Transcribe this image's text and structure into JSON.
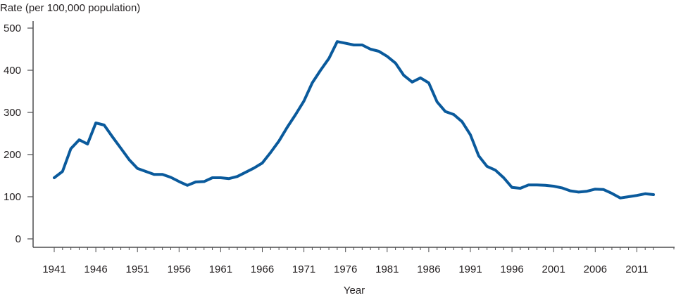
{
  "chart_data": {
    "type": "line",
    "title": "",
    "xlabel": "Year",
    "ylabel": "Rate (per 100,000 population)",
    "ylim": [
      0,
      500
    ],
    "yticks": [
      0,
      100,
      200,
      300,
      400,
      500
    ],
    "xtick_labels": [
      "1941",
      "1946",
      "1951",
      "1956",
      "1961",
      "1966",
      "1971",
      "1976",
      "1981",
      "1986",
      "1991",
      "1996",
      "2001",
      "2006",
      "2011"
    ],
    "x_range": [
      1941,
      2013
    ],
    "grid": false,
    "legend": null,
    "line_color": "#0a5a9c",
    "series": [
      {
        "name": "Rate",
        "x": [
          1941,
          1942,
          1943,
          1944,
          1945,
          1946,
          1947,
          1948,
          1949,
          1950,
          1951,
          1952,
          1953,
          1954,
          1955,
          1956,
          1957,
          1958,
          1959,
          1960,
          1961,
          1962,
          1963,
          1964,
          1965,
          1966,
          1967,
          1968,
          1969,
          1970,
          1971,
          1972,
          1973,
          1974,
          1975,
          1976,
          1977,
          1978,
          1979,
          1980,
          1981,
          1982,
          1983,
          1984,
          1985,
          1986,
          1987,
          1988,
          1989,
          1990,
          1991,
          1992,
          1993,
          1994,
          1995,
          1996,
          1997,
          1998,
          1999,
          2000,
          2001,
          2002,
          2003,
          2004,
          2005,
          2006,
          2007,
          2008,
          2009,
          2010,
          2011,
          2012,
          2013
        ],
        "values": [
          145,
          160,
          214,
          235,
          225,
          275,
          270,
          242,
          215,
          188,
          167,
          160,
          153,
          153,
          146,
          136,
          127,
          135,
          136,
          145,
          145,
          143,
          148,
          158,
          168,
          180,
          205,
          232,
          265,
          295,
          327,
          370,
          400,
          428,
          468,
          464,
          460,
          460,
          450,
          445,
          433,
          417,
          388,
          372,
          382,
          370,
          325,
          302,
          295,
          278,
          247,
          197,
          172,
          163,
          145,
          122,
          120,
          128,
          128,
          127,
          125,
          121,
          114,
          111,
          113,
          118,
          117,
          108,
          97,
          100,
          103,
          107,
          105
        ]
      }
    ]
  },
  "labels": {
    "y_axis_title": "Rate (per 100,000 population)",
    "x_axis_title": "Year"
  }
}
